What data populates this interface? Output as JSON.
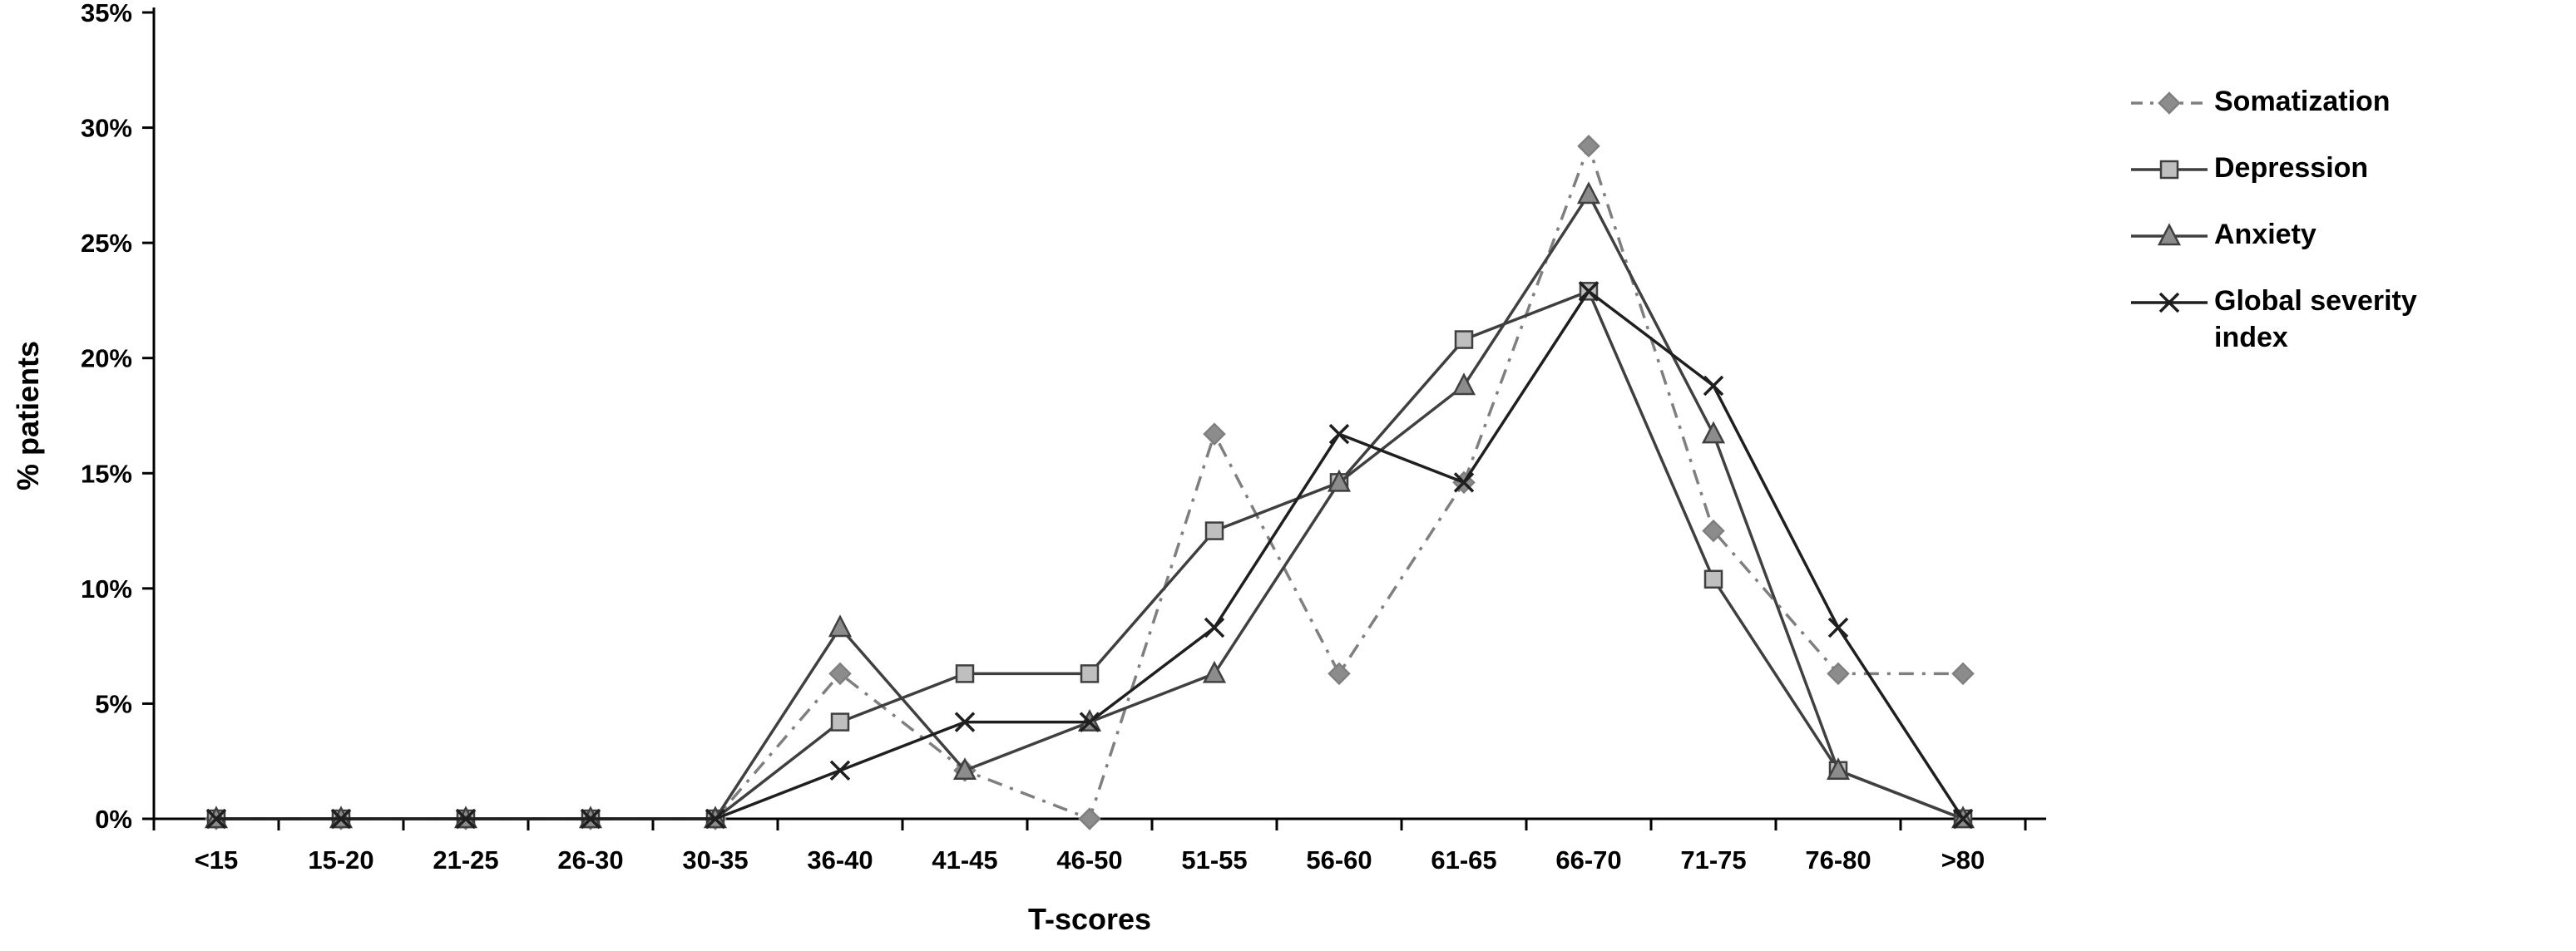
{
  "chart_data": {
    "type": "line",
    "title": "",
    "xlabel": "T-scores",
    "ylabel": "% patients",
    "ylim": [
      0,
      35
    ],
    "grid": false,
    "legend_position": "right",
    "y_ticks": [
      "0%",
      "5%",
      "10%",
      "15%",
      "20%",
      "25%",
      "30%",
      "35%"
    ],
    "categories": [
      "<15",
      "15-20",
      "21-25",
      "26-30",
      "30-35",
      "36-40",
      "41-45",
      "46-50",
      "51-55",
      "56-60",
      "61-65",
      "66-70",
      "71-75",
      "76-80",
      ">80"
    ],
    "series": [
      {
        "name": "Somatization",
        "marker": "diamond",
        "line_style": "dashdot",
        "color": "#7f7f7f",
        "marker_fill": "#8c8c8c",
        "values": [
          0,
          0,
          0,
          0,
          0,
          6.3,
          2.1,
          0,
          16.7,
          6.3,
          14.6,
          29.2,
          12.5,
          6.3,
          6.3
        ]
      },
      {
        "name": "Depression",
        "marker": "square",
        "line_style": "solid",
        "color": "#3f3f3f",
        "marker_fill": "#bfbfbf",
        "values": [
          0,
          0,
          0,
          0,
          0,
          4.2,
          6.3,
          6.3,
          12.5,
          14.6,
          20.8,
          22.9,
          10.4,
          2.1,
          0
        ]
      },
      {
        "name": "Anxiety",
        "marker": "triangle",
        "line_style": "solid",
        "color": "#404040",
        "marker_fill": "#8c8c8c",
        "values": [
          0,
          0,
          0,
          0,
          0,
          8.3,
          2.1,
          4.2,
          6.3,
          14.6,
          18.8,
          27.1,
          16.7,
          2.1,
          0
        ]
      },
      {
        "name": "Global severity index",
        "marker": "x",
        "line_style": "solid",
        "color": "#1f1f1f",
        "marker_fill": "none",
        "values": [
          0,
          0,
          0,
          0,
          0,
          2.1,
          4.2,
          4.2,
          8.3,
          16.7,
          14.6,
          22.9,
          18.8,
          8.3,
          0
        ]
      }
    ]
  }
}
